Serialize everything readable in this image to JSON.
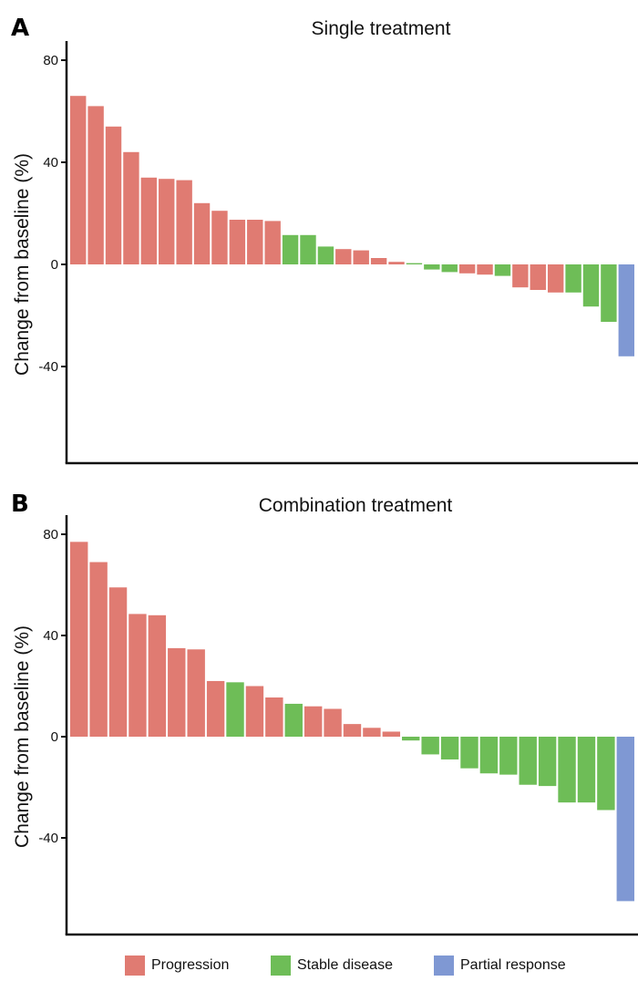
{
  "colors": {
    "Progression": "#e07b72",
    "Stable disease": "#6ebd57",
    "Partial response": "#7f98d3",
    "axis": "#111111"
  },
  "legend": [
    {
      "label": "Progression",
      "key": "Progression"
    },
    {
      "label": "Stable disease",
      "key": "Stable disease"
    },
    {
      "label": "Partial response",
      "key": "Partial response"
    }
  ],
  "chart_data": [
    {
      "panel": "A",
      "type": "bar",
      "title": "Single treatment",
      "ylabel": "Change from baseline (%)",
      "ylim": [
        -77,
        88
      ],
      "yticks": [
        80,
        40,
        0,
        -40
      ],
      "ytick_labels": [
        "80",
        "40",
        "0",
        "-40"
      ],
      "values": [
        66,
        62,
        54,
        44,
        34,
        33.5,
        33,
        24,
        21,
        17.5,
        17.5,
        17,
        11.5,
        11.5,
        7,
        6,
        5.5,
        2.5,
        1,
        0.5,
        -2,
        -3,
        -3.5,
        -4,
        -4.5,
        -9,
        -10,
        -11,
        -11,
        -16.5,
        -22.5,
        -36
      ],
      "categories": [
        "Progression",
        "Progression",
        "Progression",
        "Progression",
        "Progression",
        "Progression",
        "Progression",
        "Progression",
        "Progression",
        "Progression",
        "Progression",
        "Progression",
        "Stable disease",
        "Stable disease",
        "Stable disease",
        "Progression",
        "Progression",
        "Progression",
        "Progression",
        "Stable disease",
        "Stable disease",
        "Stable disease",
        "Progression",
        "Progression",
        "Stable disease",
        "Progression",
        "Progression",
        "Progression",
        "Stable disease",
        "Stable disease",
        "Stable disease",
        "Partial response"
      ]
    },
    {
      "panel": "B",
      "type": "bar",
      "title": "Combination treatment",
      "ylabel": "Change from baseline (%)",
      "ylim": [
        -78,
        88
      ],
      "yticks": [
        80,
        40,
        0,
        -40
      ],
      "ytick_labels": [
        "80",
        "40",
        "0",
        "-40"
      ],
      "values": [
        77,
        69,
        59,
        48.5,
        48,
        35,
        34.5,
        22,
        21.5,
        20,
        15.5,
        13,
        12,
        11,
        5,
        3.5,
        2,
        -1.5,
        -7,
        -9,
        -12.5,
        -14.5,
        -15,
        -19,
        -19.5,
        -26,
        -26,
        -29,
        -65
      ],
      "categories": [
        "Progression",
        "Progression",
        "Progression",
        "Progression",
        "Progression",
        "Progression",
        "Progression",
        "Progression",
        "Stable disease",
        "Progression",
        "Progression",
        "Stable disease",
        "Progression",
        "Progression",
        "Progression",
        "Progression",
        "Progression",
        "Stable disease",
        "Stable disease",
        "Stable disease",
        "Stable disease",
        "Stable disease",
        "Stable disease",
        "Stable disease",
        "Stable disease",
        "Stable disease",
        "Stable disease",
        "Stable disease",
        "Partial response"
      ]
    }
  ]
}
